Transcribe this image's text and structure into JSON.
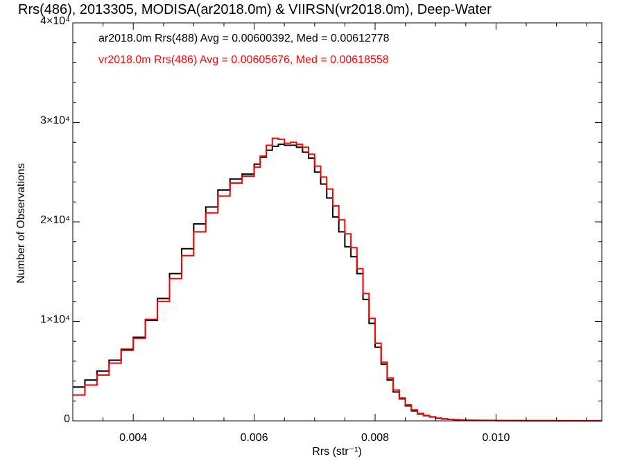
{
  "chart_data": {
    "type": "line",
    "step": true,
    "title": "Rrs(486), 2013305, MODISA(ar2018.0m) & VIIRSN(vr2018.0m), Deep-Water",
    "xlabel": "Rrs (str⁻¹)",
    "ylabel": "Number of Observations",
    "xlim": [
      0.003,
      0.01175
    ],
    "ylim": [
      0,
      40000
    ],
    "x_ticks": [
      {
        "value": 0.004,
        "label": "0.004"
      },
      {
        "value": 0.006,
        "label": "0.006"
      },
      {
        "value": 0.008,
        "label": "0.008"
      },
      {
        "value": 0.01,
        "label": "0.010"
      }
    ],
    "y_ticks": [
      {
        "value": 0,
        "label": "0"
      },
      {
        "value": 10000,
        "label": "1×10⁴"
      },
      {
        "value": 20000,
        "label": "2×10⁴"
      },
      {
        "value": 30000,
        "label": "3×10⁴"
      },
      {
        "value": 40000,
        "label": "4×10⁴"
      }
    ],
    "series": [
      {
        "name": "ar2018.0m Rrs(488) Avg = 0.00600392, Med = 0.00612778",
        "color": "#000000",
        "x": [
          0.003,
          0.0032,
          0.0034,
          0.0036,
          0.0038,
          0.004,
          0.0042,
          0.0044,
          0.0046,
          0.0048,
          0.005,
          0.0052,
          0.0054,
          0.0056,
          0.0058,
          0.006,
          0.0061,
          0.0062,
          0.0063,
          0.0064,
          0.0065,
          0.0066,
          0.0067,
          0.0068,
          0.0069,
          0.007,
          0.0071,
          0.0072,
          0.0073,
          0.0074,
          0.0075,
          0.0076,
          0.0077,
          0.0078,
          0.0079,
          0.008,
          0.0081,
          0.0082,
          0.0083,
          0.0084,
          0.0085,
          0.0086,
          0.0087,
          0.0088,
          0.0089,
          0.009,
          0.0091,
          0.0092,
          0.0093,
          0.0094,
          0.0095,
          0.0096,
          0.0097,
          0.0098,
          0.01,
          0.0102,
          0.0104,
          0.0106,
          0.0108,
          0.011,
          0.0112,
          0.0114,
          0.0116,
          0.01175
        ],
        "values": [
          3400,
          4100,
          5000,
          6100,
          7200,
          8400,
          10100,
          12300,
          14800,
          17300,
          19800,
          21500,
          23200,
          24300,
          24800,
          25800,
          26500,
          27200,
          27600,
          27800,
          27700,
          27700,
          27500,
          27000,
          26400,
          25000,
          23800,
          22400,
          20500,
          19000,
          17500,
          16500,
          14800,
          12200,
          9800,
          7400,
          5700,
          4100,
          2900,
          2200,
          1500,
          1000,
          700,
          520,
          380,
          260,
          190,
          140,
          110,
          90,
          70,
          55,
          45,
          40,
          30,
          25,
          20,
          15,
          15,
          10,
          10,
          10,
          10,
          10
        ]
      },
      {
        "name": "vr2018.0m Rrs(486) Avg = 0.00605676, Med = 0.00618558",
        "color": "#ff0000",
        "x": [
          0.003,
          0.0032,
          0.0034,
          0.0036,
          0.0038,
          0.004,
          0.0042,
          0.0044,
          0.0046,
          0.0048,
          0.005,
          0.0052,
          0.0054,
          0.0056,
          0.0058,
          0.006,
          0.0061,
          0.0062,
          0.0063,
          0.0064,
          0.0065,
          0.0066,
          0.0067,
          0.0068,
          0.0069,
          0.007,
          0.0071,
          0.0072,
          0.0073,
          0.0074,
          0.0075,
          0.0076,
          0.0077,
          0.0078,
          0.0079,
          0.008,
          0.0081,
          0.0082,
          0.0083,
          0.0084,
          0.0085,
          0.0086,
          0.0087,
          0.0088,
          0.0089,
          0.009,
          0.0091,
          0.0092,
          0.0093,
          0.0094,
          0.0095,
          0.0096,
          0.0097,
          0.0098,
          0.01,
          0.0102,
          0.0104,
          0.0106,
          0.0108,
          0.011,
          0.0112,
          0.0114,
          0.0116,
          0.01175
        ],
        "values": [
          2600,
          3600,
          4600,
          5800,
          7100,
          8300,
          10200,
          12000,
          14300,
          16600,
          19000,
          20900,
          22600,
          23900,
          24600,
          25500,
          26600,
          27700,
          28400,
          28300,
          27900,
          28000,
          27800,
          27500,
          26800,
          25600,
          24500,
          23300,
          21600,
          20200,
          18800,
          17400,
          15300,
          12800,
          10300,
          7800,
          5900,
          4300,
          3100,
          2300,
          1600,
          1100,
          750,
          560,
          400,
          280,
          200,
          150,
          115,
          90,
          75,
          60,
          50,
          40,
          30,
          25,
          20,
          15,
          15,
          10,
          10,
          10,
          10,
          10
        ]
      }
    ]
  }
}
